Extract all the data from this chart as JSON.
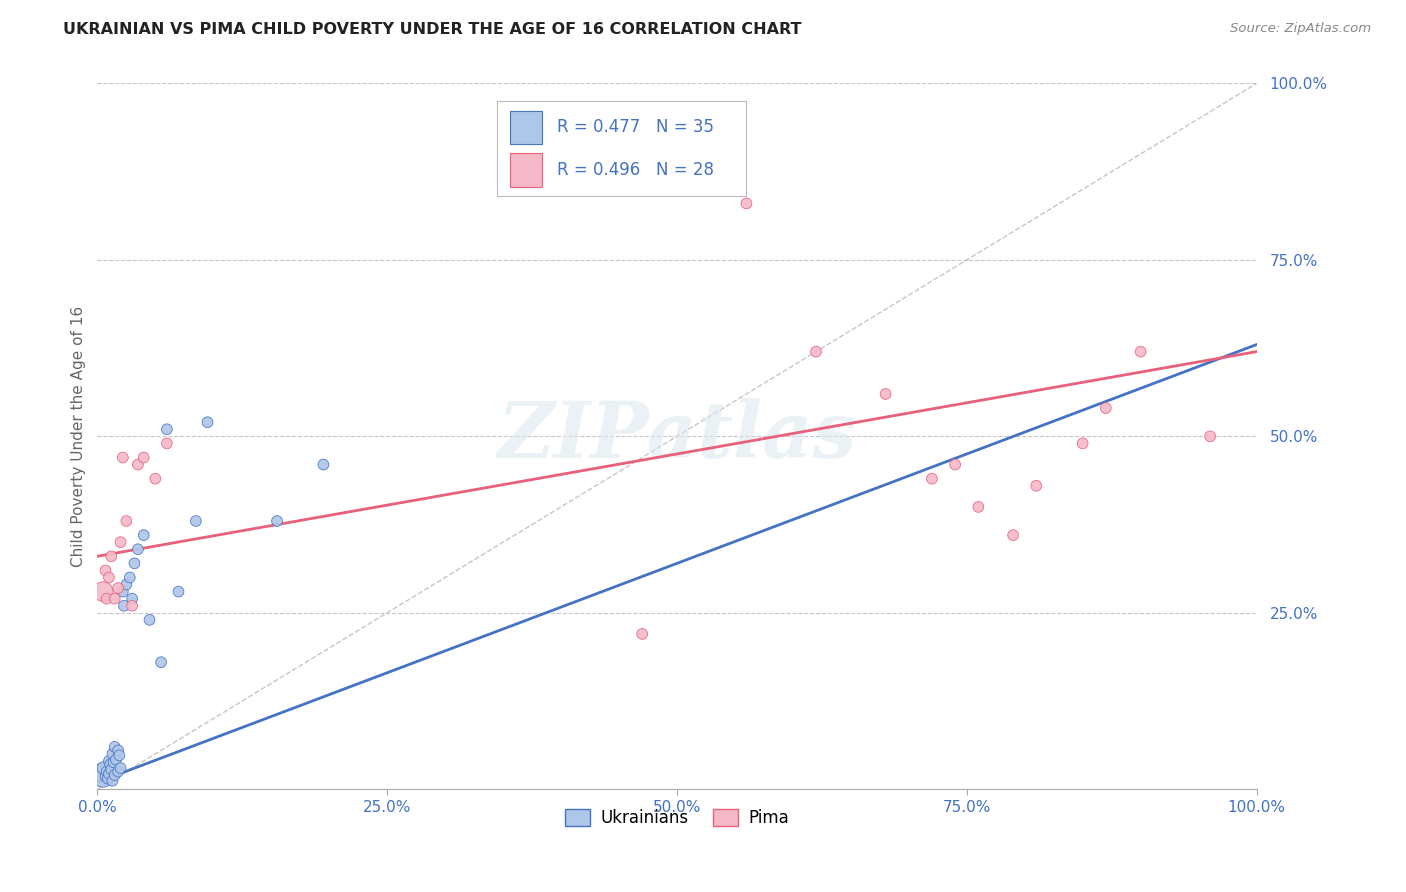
{
  "title": "UKRAINIAN VS PIMA CHILD POVERTY UNDER THE AGE OF 16 CORRELATION CHART",
  "source": "Source: ZipAtlas.com",
  "ylabel": "Child Poverty Under the Age of 16",
  "xlim": [
    0,
    1.0
  ],
  "ylim": [
    0,
    1.0
  ],
  "xtick_labels": [
    "0.0%",
    "25.0%",
    "50.0%",
    "75.0%",
    "100.0%"
  ],
  "xtick_vals": [
    0.0,
    0.25,
    0.5,
    0.75,
    1.0
  ],
  "ytick_labels": [
    "25.0%",
    "50.0%",
    "75.0%",
    "100.0%"
  ],
  "ytick_vals": [
    0.25,
    0.5,
    0.75,
    1.0
  ],
  "background_color": "#ffffff",
  "grid_color": "#c8c8c8",
  "ukrainians_color": "#aec6e8",
  "pima_color": "#f4b8c8",
  "blue_line_color": "#4472c4",
  "pink_line_color": "#e8607a",
  "diag_line_color": "#b8b8b8",
  "legend_label_blue": "Ukrainians",
  "legend_label_pink": "Pima",
  "watermark": "ZIPatlas",
  "blue_line_y0": 0.01,
  "blue_line_y1": 0.63,
  "pink_line_y0": 0.33,
  "pink_line_y1": 0.62,
  "ukrainians_x": [
    0.005,
    0.005,
    0.007,
    0.008,
    0.009,
    0.01,
    0.01,
    0.011,
    0.012,
    0.013,
    0.013,
    0.014,
    0.015,
    0.015,
    0.016,
    0.018,
    0.018,
    0.019,
    0.02,
    0.022,
    0.023,
    0.025,
    0.028,
    0.03,
    0.032,
    0.035,
    0.04,
    0.045,
    0.055,
    0.06,
    0.07,
    0.085,
    0.095,
    0.155,
    0.195
  ],
  "ukrainians_y": [
    0.02,
    0.03,
    0.018,
    0.025,
    0.015,
    0.022,
    0.04,
    0.035,
    0.028,
    0.012,
    0.05,
    0.038,
    0.06,
    0.02,
    0.042,
    0.055,
    0.025,
    0.048,
    0.03,
    0.28,
    0.26,
    0.29,
    0.3,
    0.27,
    0.32,
    0.34,
    0.36,
    0.24,
    0.18,
    0.51,
    0.28,
    0.38,
    0.52,
    0.38,
    0.46
  ],
  "ukrainians_sizes": [
    300,
    80,
    60,
    60,
    60,
    60,
    60,
    60,
    60,
    60,
    60,
    60,
    60,
    60,
    60,
    60,
    60,
    60,
    60,
    60,
    60,
    60,
    60,
    60,
    60,
    60,
    60,
    60,
    60,
    60,
    60,
    60,
    60,
    60,
    60
  ],
  "pima_x": [
    0.005,
    0.007,
    0.008,
    0.01,
    0.012,
    0.015,
    0.018,
    0.02,
    0.022,
    0.025,
    0.03,
    0.035,
    0.04,
    0.05,
    0.06,
    0.47,
    0.56,
    0.62,
    0.68,
    0.72,
    0.74,
    0.76,
    0.79,
    0.81,
    0.85,
    0.87,
    0.9,
    0.96
  ],
  "pima_y": [
    0.28,
    0.31,
    0.27,
    0.3,
    0.33,
    0.27,
    0.285,
    0.35,
    0.47,
    0.38,
    0.26,
    0.46,
    0.47,
    0.44,
    0.49,
    0.22,
    0.83,
    0.62,
    0.56,
    0.44,
    0.46,
    0.4,
    0.36,
    0.43,
    0.49,
    0.54,
    0.62,
    0.5
  ],
  "pima_sizes": [
    200,
    60,
    60,
    60,
    60,
    60,
    60,
    60,
    60,
    60,
    60,
    60,
    60,
    60,
    60,
    60,
    60,
    60,
    60,
    60,
    60,
    60,
    60,
    60,
    60,
    60,
    60,
    60
  ]
}
